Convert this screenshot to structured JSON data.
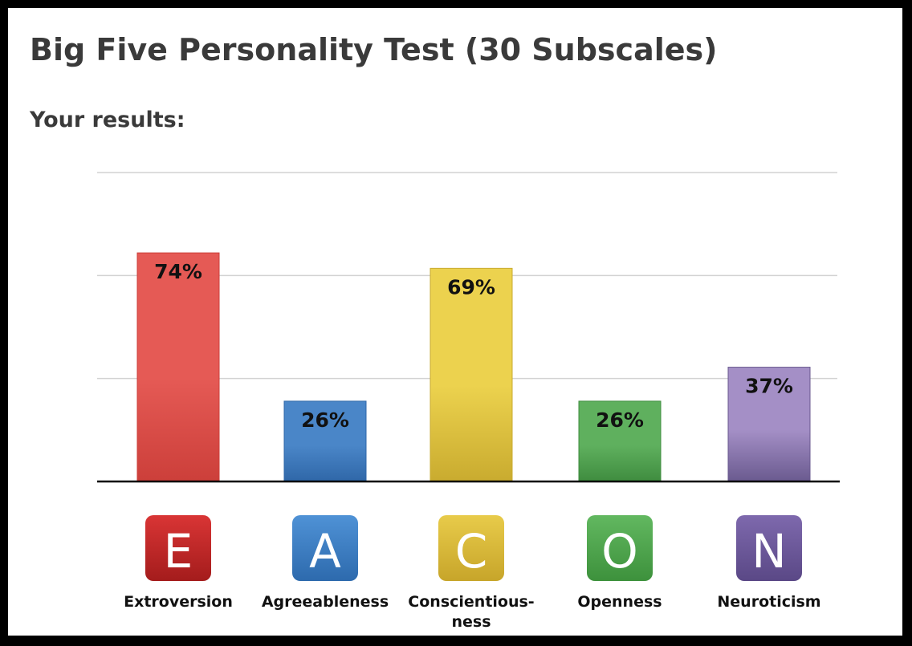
{
  "header": {
    "title": "Big Five Personality Test (30 Subscales)",
    "subtitle": "Your results:"
  },
  "chart_data": {
    "type": "bar",
    "title": "Big Five Personality Test (30 Subscales)",
    "subtitle": "Your results:",
    "xlabel": "",
    "ylabel": "",
    "ylim": [
      0,
      100
    ],
    "grid": true,
    "gridlines": [
      33.33,
      66.67,
      100
    ],
    "legend": "none",
    "categories": [
      {
        "letter": "E",
        "label_lines": [
          "Extroversion"
        ],
        "value": 74,
        "value_label": "74%",
        "color": "#e55a55",
        "color_dark": "#cc3f3a",
        "tile_color": "#d93535",
        "tile_dark": "#a41c1c"
      },
      {
        "letter": "A",
        "label_lines": [
          "Agreeableness"
        ],
        "value": 26,
        "value_label": "26%",
        "color": "#4a86c8",
        "color_dark": "#2f67a8",
        "tile_color": "#4f92d6",
        "tile_dark": "#2d6aad"
      },
      {
        "letter": "C",
        "label_lines": [
          "Conscientious-",
          "ness"
        ],
        "value": 69,
        "value_label": "69%",
        "color": "#ecd24e",
        "color_dark": "#c9ab2f",
        "tile_color": "#e8cb4a",
        "tile_dark": "#c7a52a"
      },
      {
        "letter": "O",
        "label_lines": [
          "Openness"
        ],
        "value": 26,
        "value_label": "26%",
        "color": "#5fb05e",
        "color_dark": "#3f8c3f",
        "tile_color": "#62b860",
        "tile_dark": "#3d913c"
      },
      {
        "letter": "N",
        "label_lines": [
          "Neuroticism"
        ],
        "value": 37,
        "value_label": "37%",
        "color": "#a48fc6",
        "color_dark": "#6a5a8f",
        "tile_color": "#7e69ad",
        "tile_dark": "#5a4886"
      }
    ]
  }
}
